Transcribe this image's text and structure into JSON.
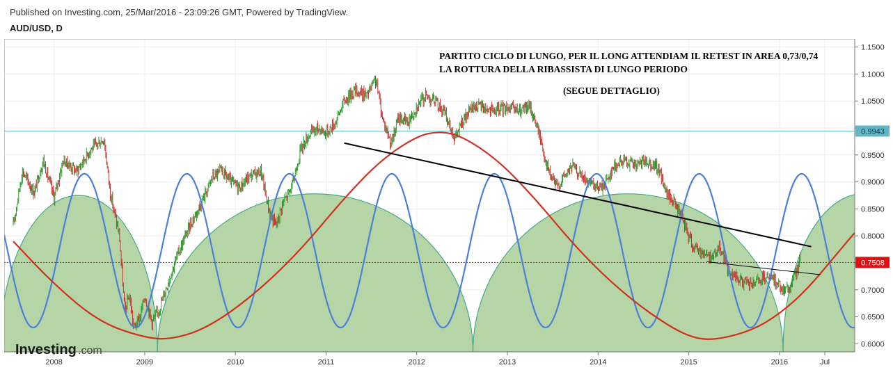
{
  "header": {
    "published": "Published on Investing.com, 25/Mar/2016 - 23:09:26 GMT, Powered by TradingView.",
    "symbol": "AUD/USD, D"
  },
  "logo": {
    "main": "Investing",
    "suffix": ".com"
  },
  "chart_data": {
    "type": "line",
    "x_ticks": [
      "2008",
      "2009",
      "2010",
      "2011",
      "2012",
      "2013",
      "2014",
      "2015",
      "2016",
      "Jul"
    ],
    "y_ticks": [
      "0.6000",
      "0.6500",
      "0.7000",
      "0.7500",
      "0.8000",
      "0.8500",
      "0.9000",
      "0.9500",
      "1.0000",
      "1.0500",
      "1.1000",
      "1.1500"
    ],
    "ylim": [
      0.585,
      1.165
    ],
    "annotations": [
      "PARTITO CICLO DI LUNGO, PER IL LONG ATTENDIAM IL RETEST IN AREA 0,73/0,74",
      "LA ROTTURA DELLA RIBASSISTA DI LUNGO PERIODO",
      "(SEGUE DETTAGLIO)"
    ],
    "price_levels": [
      {
        "value": 0.9943,
        "label": "0.9943",
        "color": "#5fb6c4",
        "style": "solid"
      },
      {
        "value": 0.7508,
        "label": "0.7508",
        "color": "#e01010",
        "style": "dotted"
      }
    ],
    "price_path": [
      [
        2007.55,
        0.82
      ],
      [
        2007.65,
        0.92
      ],
      [
        2007.78,
        0.88
      ],
      [
        2007.88,
        0.94
      ],
      [
        2008.0,
        0.87
      ],
      [
        2008.1,
        0.94
      ],
      [
        2008.25,
        0.92
      ],
      [
        2008.4,
        0.96
      ],
      [
        2008.55,
        0.98
      ],
      [
        2008.62,
        0.88
      ],
      [
        2008.72,
        0.8
      ],
      [
        2008.78,
        0.66
      ],
      [
        2008.83,
        0.69
      ],
      [
        2008.88,
        0.63
      ],
      [
        2008.95,
        0.65
      ],
      [
        2009.0,
        0.69
      ],
      [
        2009.08,
        0.64
      ],
      [
        2009.15,
        0.66
      ],
      [
        2009.25,
        0.71
      ],
      [
        2009.35,
        0.76
      ],
      [
        2009.5,
        0.82
      ],
      [
        2009.62,
        0.86
      ],
      [
        2009.75,
        0.91
      ],
      [
        2009.85,
        0.92
      ],
      [
        2009.95,
        0.9
      ],
      [
        2010.05,
        0.89
      ],
      [
        2010.15,
        0.91
      ],
      [
        2010.28,
        0.92
      ],
      [
        2010.38,
        0.84
      ],
      [
        2010.45,
        0.82
      ],
      [
        2010.52,
        0.86
      ],
      [
        2010.62,
        0.89
      ],
      [
        2010.72,
        0.96
      ],
      [
        2010.82,
        0.99
      ],
      [
        2010.92,
        1.0
      ],
      [
        2011.0,
        0.99
      ],
      [
        2011.1,
        1.01
      ],
      [
        2011.2,
        1.05
      ],
      [
        2011.32,
        1.07
      ],
      [
        2011.45,
        1.06
      ],
      [
        2011.55,
        1.09
      ],
      [
        2011.62,
        1.02
      ],
      [
        2011.72,
        0.97
      ],
      [
        2011.8,
        1.02
      ],
      [
        2011.9,
        1.01
      ],
      [
        2012.0,
        1.04
      ],
      [
        2012.1,
        1.06
      ],
      [
        2012.2,
        1.05
      ],
      [
        2012.3,
        1.03
      ],
      [
        2012.42,
        0.98
      ],
      [
        2012.5,
        1.01
      ],
      [
        2012.62,
        1.04
      ],
      [
        2012.72,
        1.04
      ],
      [
        2012.85,
        1.03
      ],
      [
        2013.0,
        1.04
      ],
      [
        2013.12,
        1.03
      ],
      [
        2013.25,
        1.04
      ],
      [
        2013.35,
        0.99
      ],
      [
        2013.45,
        0.92
      ],
      [
        2013.55,
        0.89
      ],
      [
        2013.62,
        0.91
      ],
      [
        2013.72,
        0.93
      ],
      [
        2013.82,
        0.91
      ],
      [
        2013.95,
        0.89
      ],
      [
        2014.05,
        0.89
      ],
      [
        2014.18,
        0.93
      ],
      [
        2014.3,
        0.94
      ],
      [
        2014.42,
        0.93
      ],
      [
        2014.55,
        0.94
      ],
      [
        2014.68,
        0.92
      ],
      [
        2014.75,
        0.88
      ],
      [
        2014.85,
        0.86
      ],
      [
        2014.95,
        0.82
      ],
      [
        2015.05,
        0.78
      ],
      [
        2015.15,
        0.77
      ],
      [
        2015.25,
        0.76
      ],
      [
        2015.35,
        0.78
      ],
      [
        2015.45,
        0.73
      ],
      [
        2015.55,
        0.72
      ],
      [
        2015.65,
        0.71
      ],
      [
        2015.72,
        0.71
      ],
      [
        2015.82,
        0.72
      ],
      [
        2015.92,
        0.72
      ],
      [
        2016.0,
        0.71
      ],
      [
        2016.05,
        0.7
      ],
      [
        2016.1,
        0.7
      ],
      [
        2016.15,
        0.72
      ],
      [
        2016.2,
        0.74
      ],
      [
        2016.23,
        0.76
      ]
    ],
    "long_cycle_curve": [
      [
        2007.55,
        0.79
      ],
      [
        2008.0,
        0.71
      ],
      [
        2008.5,
        0.64
      ],
      [
        2009.0,
        0.611
      ],
      [
        2009.3,
        0.608
      ],
      [
        2009.7,
        0.63
      ],
      [
        2010.2,
        0.69
      ],
      [
        2010.7,
        0.77
      ],
      [
        2011.2,
        0.87
      ],
      [
        2011.6,
        0.94
      ],
      [
        2012.0,
        0.985
      ],
      [
        2012.25,
        0.994
      ],
      [
        2012.5,
        0.985
      ],
      [
        2012.9,
        0.94
      ],
      [
        2013.3,
        0.87
      ],
      [
        2013.8,
        0.77
      ],
      [
        2014.3,
        0.69
      ],
      [
        2014.8,
        0.63
      ],
      [
        2015.1,
        0.608
      ],
      [
        2015.35,
        0.609
      ],
      [
        2015.7,
        0.625
      ],
      [
        2016.0,
        0.655
      ],
      [
        2016.3,
        0.7
      ],
      [
        2016.6,
        0.76
      ],
      [
        2016.85,
        0.81
      ],
      [
        2017.02,
        0.84
      ]
    ],
    "short_cycle": {
      "period_years": 1.13,
      "high": 0.915,
      "low": 0.63,
      "first_low_x": 2008.9
    },
    "cycle_domes": [
      {
        "start": 2007.4,
        "end": 2009.14,
        "top": 0.875
      },
      {
        "start": 2009.14,
        "end": 2012.62,
        "top": 0.878
      },
      {
        "start": 2012.62,
        "end": 2016.04,
        "top": 0.878
      },
      {
        "start": 2016.04,
        "end": 2017.8,
        "top": 0.878
      }
    ],
    "trendlines": [
      {
        "x1": 2011.2,
        "y1": 0.972,
        "x2": 2016.35,
        "y2": 0.78,
        "color": "#000000",
        "width": 2
      },
      {
        "x1": 2015.2,
        "y1": 0.752,
        "x2": 2016.45,
        "y2": 0.728,
        "color": "#000000",
        "width": 1
      }
    ]
  }
}
